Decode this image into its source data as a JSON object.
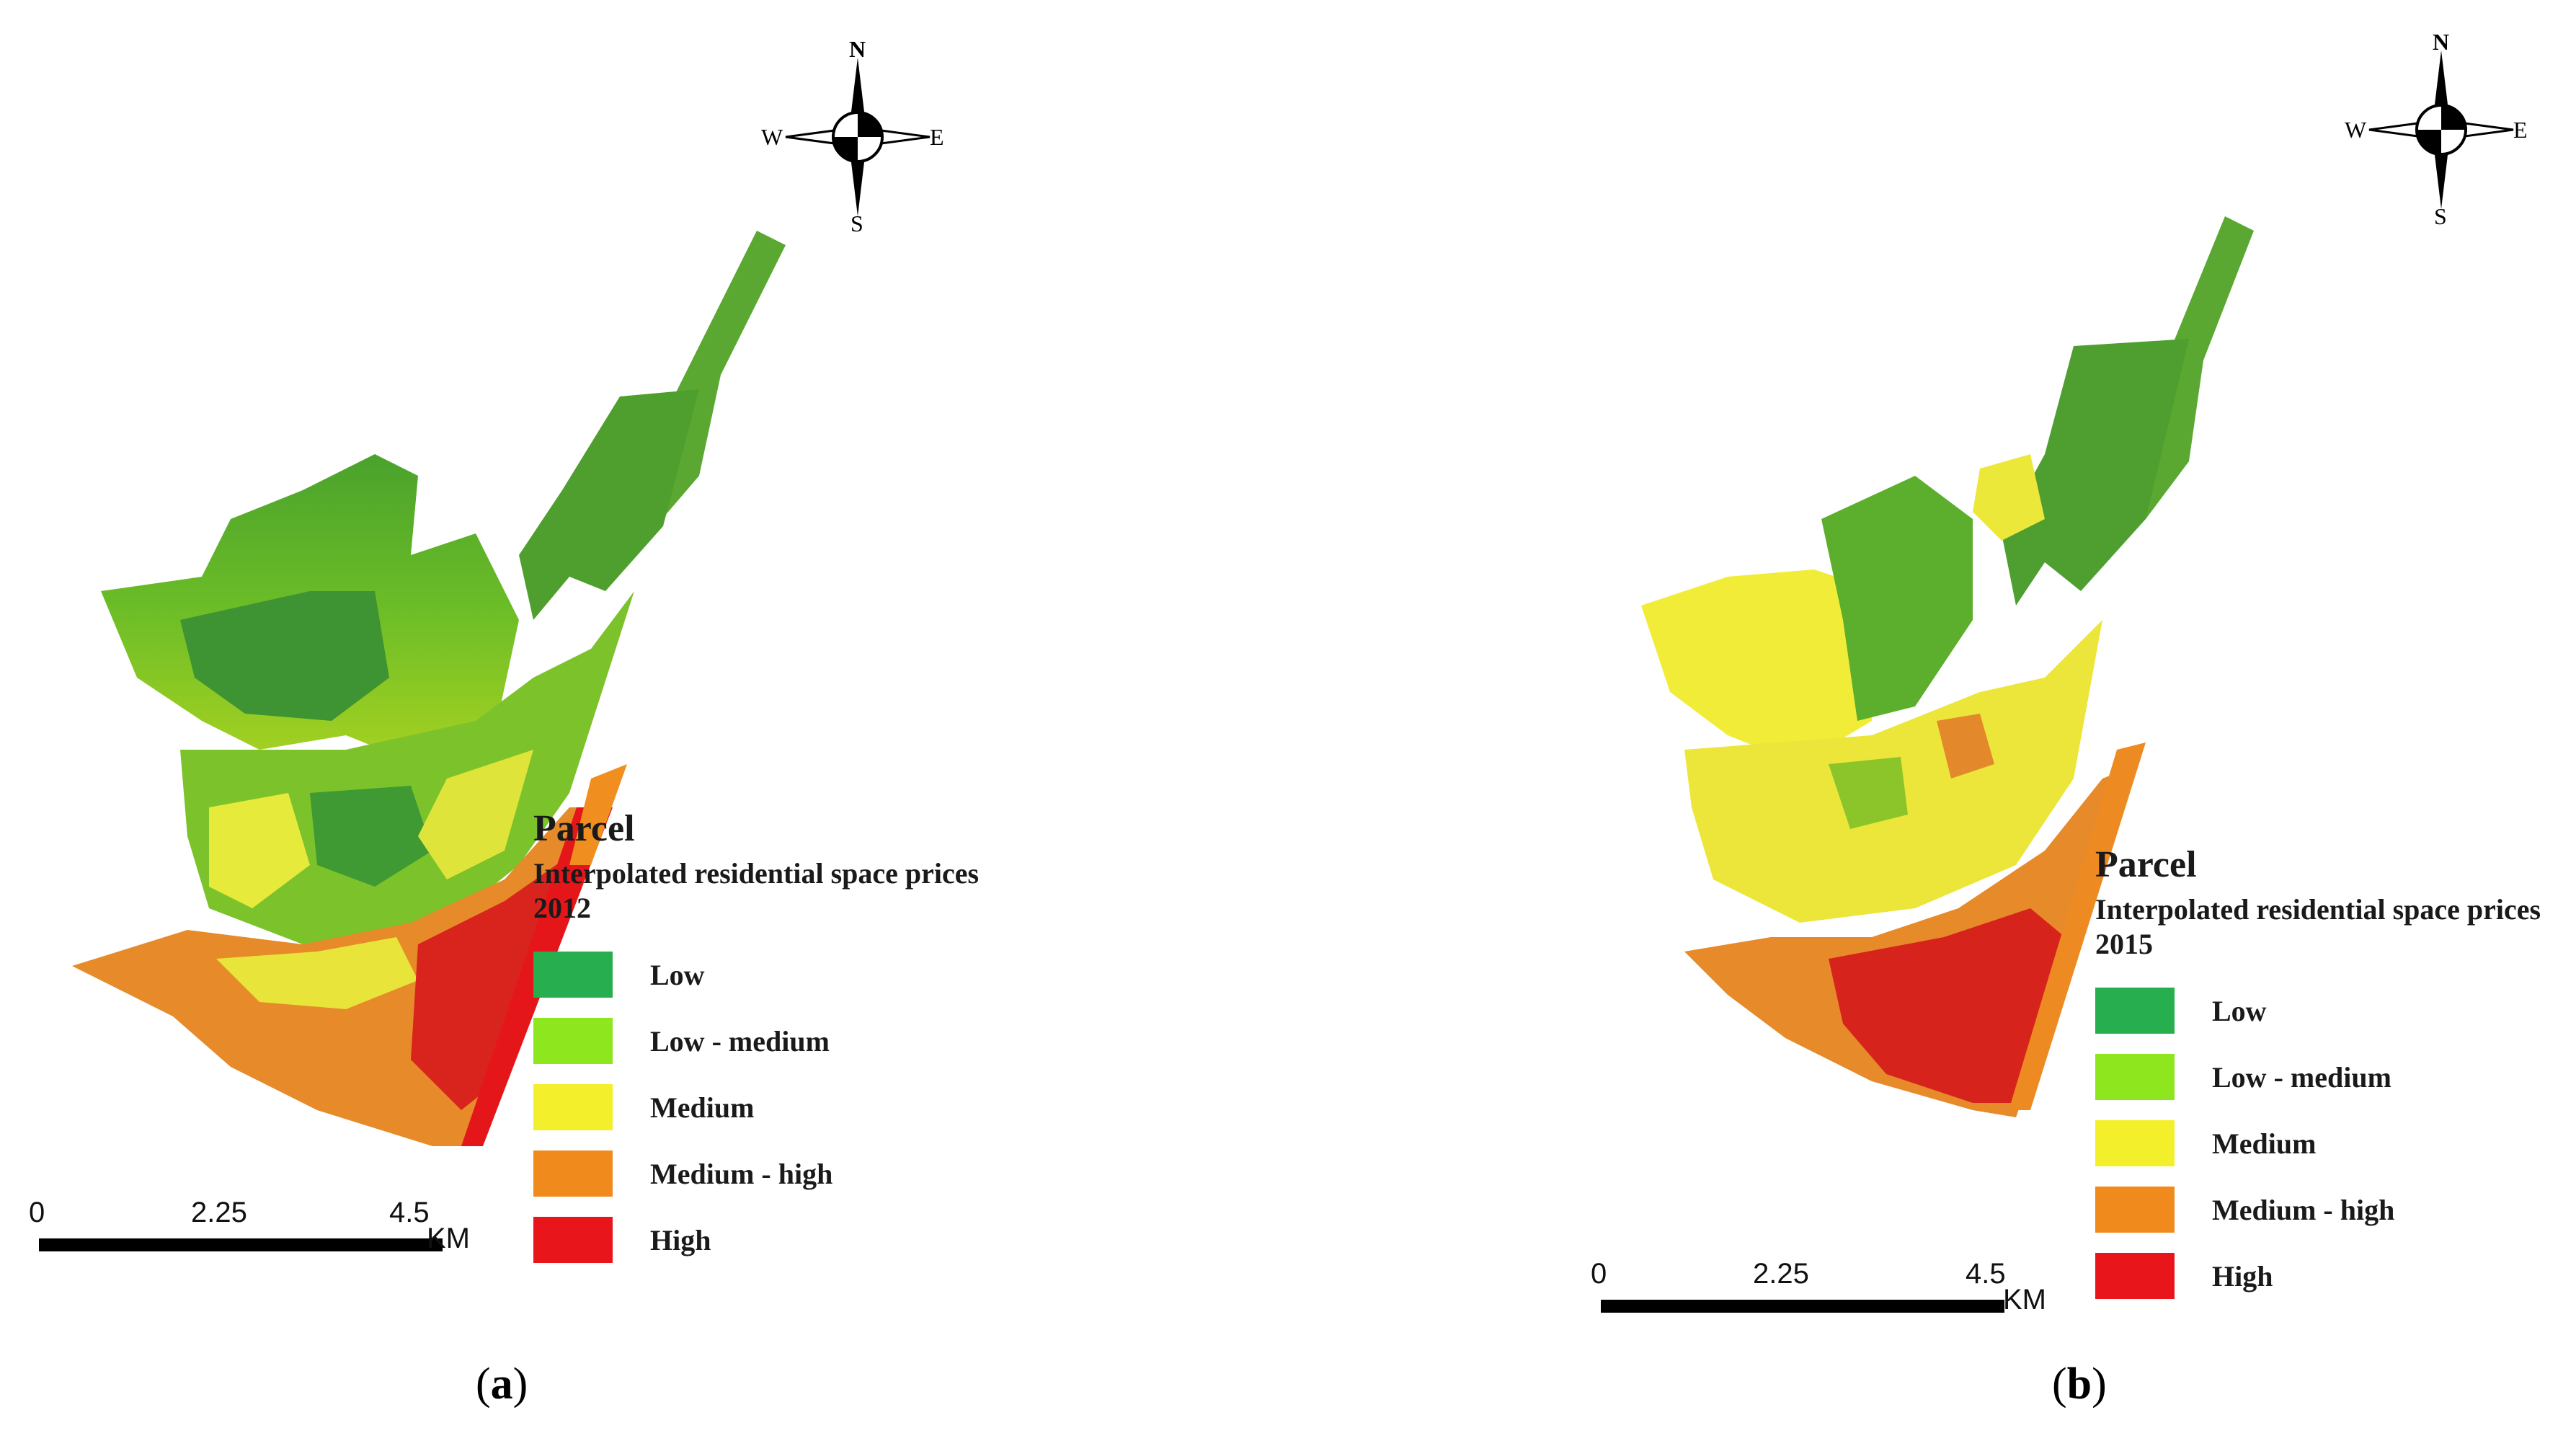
{
  "panels": [
    {
      "id": "a",
      "label_letter": "a",
      "legend_title": "Parcel",
      "legend_subtitle": "Interpolated residential space prices 2012",
      "legend_items": [
        {
          "label": "Low",
          "color": "#27ae4f"
        },
        {
          "label": "Low - medium",
          "color": "#8ee61f"
        },
        {
          "label": "Medium",
          "color": "#f3f02b"
        },
        {
          "label": "Medium - high",
          "color": "#f18a1c"
        },
        {
          "label": "High",
          "color": "#e8161a"
        }
      ],
      "scale": {
        "ticks": [
          "0",
          "2.25",
          "4.5"
        ],
        "unit": "KM"
      },
      "compass": {
        "n": "N",
        "s": "S",
        "e": "E",
        "w": "W"
      }
    },
    {
      "id": "b",
      "label_letter": "b",
      "legend_title": "Parcel",
      "legend_subtitle": "Interpolated residential space prices 2015",
      "legend_items": [
        {
          "label": "Low",
          "color": "#27ae4f"
        },
        {
          "label": "Low - medium",
          "color": "#8ee61f"
        },
        {
          "label": "Medium",
          "color": "#f3f02b"
        },
        {
          "label": "Medium - high",
          "color": "#f18a1c"
        },
        {
          "label": "High",
          "color": "#e8161a"
        }
      ],
      "scale": {
        "ticks": [
          "0",
          "2.25",
          "4.5"
        ],
        "unit": "KM"
      },
      "compass": {
        "n": "N",
        "s": "S",
        "e": "E",
        "w": "W"
      }
    }
  ]
}
